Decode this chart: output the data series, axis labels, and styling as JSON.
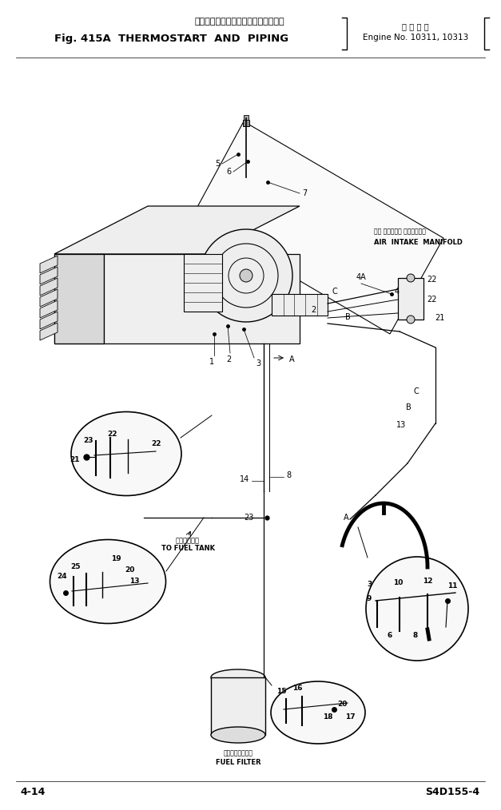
{
  "title_jp": "サーモスタート　および　パイピング",
  "title_en": "Fig. 415A  THERMOSTART  AND  PIPING",
  "engine_label_jp": "適 用 号 機",
  "engine_label_en": "Engine No. 10311, 10313",
  "page_num": "4-14",
  "model": "S4D155-4",
  "bg_color": "#ffffff",
  "ink_color": "#000000",
  "label_air_intake_jp": "エア インテーク マニホールド",
  "label_air_intake_en": "AIR  INTAKE  MANIFOLD",
  "label_fuel_tank_jp": "燃料タンクへ",
  "label_fuel_tank_en": "TO FUEL TANK",
  "label_fuel_filter_jp": "フュエルフィルタ",
  "label_fuel_filter_en": "FUEL FILTER"
}
